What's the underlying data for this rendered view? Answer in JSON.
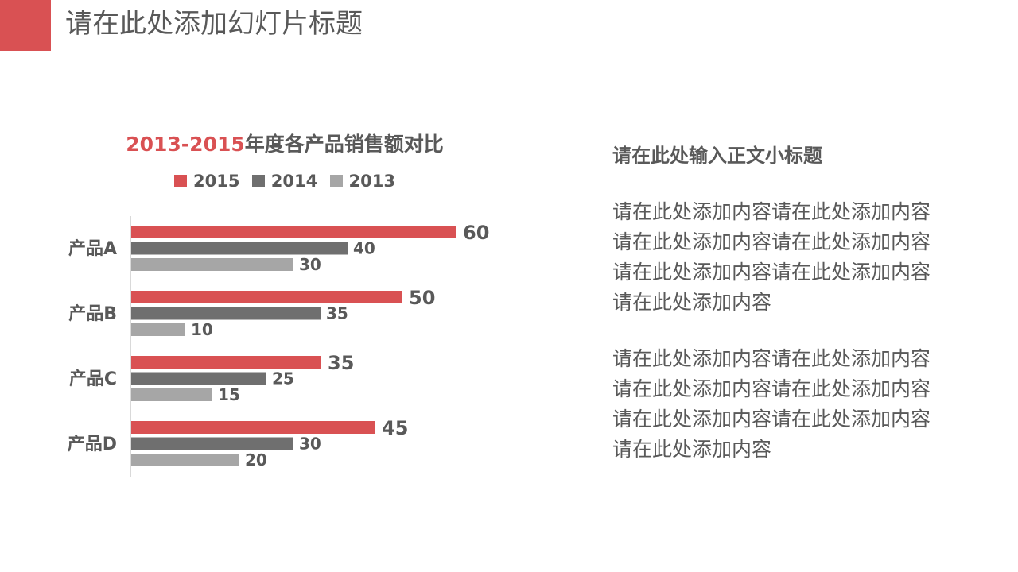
{
  "slide": {
    "title": "请在此处添加幻灯片标题",
    "accent_color": "#d95153"
  },
  "chart_data": {
    "type": "bar",
    "orientation": "horizontal",
    "title_highlight": "2013-2015",
    "title_rest": "年度各产品销售额对比",
    "categories": [
      "产品A",
      "产品B",
      "产品C",
      "产品D"
    ],
    "series": [
      {
        "name": "2015",
        "color": "#d95153",
        "values": [
          60,
          50,
          35,
          45
        ]
      },
      {
        "name": "2014",
        "color": "#6f6f6f",
        "values": [
          40,
          35,
          25,
          30
        ]
      },
      {
        "name": "2013",
        "color": "#a6a6a6",
        "values": [
          30,
          10,
          15,
          20
        ]
      }
    ],
    "xlim": [
      0,
      60
    ],
    "legend": "top",
    "grid": false,
    "data_labels": true
  },
  "text_panel": {
    "subtitle": "请在此处输入正文小标题",
    "paragraphs": [
      [
        "请在此处添加内容请在此处添加内容",
        "请在此处添加内容请在此处添加内容",
        "请在此处添加内容请在此处添加内容",
        "请在此处添加内容"
      ],
      [
        "请在此处添加内容请在此处添加内容",
        "请在此处添加内容请在此处添加内容",
        "请在此处添加内容请在此处添加内容",
        "请在此处添加内容"
      ]
    ]
  }
}
